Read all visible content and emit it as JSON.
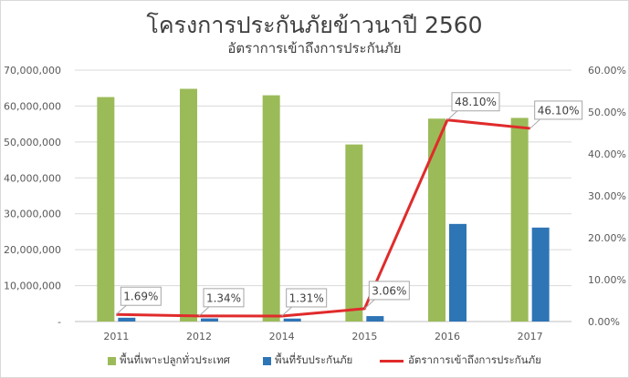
{
  "chart_data": {
    "type": "bar",
    "title": "โครงการประกันภัยข้าวนาปี 2560",
    "subtitle": "อัตราการเข้าถึงการประกันภัย",
    "categories": [
      "2011",
      "2012",
      "2014",
      "2015",
      "2016",
      "2017"
    ],
    "series": [
      {
        "name": "พื้นที่เพาะปลูกทั่วประเทศ",
        "type": "bar",
        "axis": "left",
        "color": "#9bbb59",
        "values": [
          62500000,
          64800000,
          63000000,
          49300000,
          56500000,
          56700000
        ]
      },
      {
        "name": "พื้นที่รับประกันภัย",
        "type": "bar",
        "axis": "left",
        "color": "#2e75b6",
        "values": [
          1056000,
          868000,
          825000,
          1509000,
          27177000,
          26159000
        ]
      },
      {
        "name": "อัตราการเข้าถึงการประกันภัย",
        "type": "line",
        "axis": "right",
        "color": "#e02b2b",
        "values": [
          1.69,
          1.34,
          1.31,
          3.06,
          48.1,
          46.1
        ],
        "labels": [
          "1.69%",
          "1.34%",
          "1.31%",
          "3.06%",
          "48.10%",
          "46.10%"
        ]
      }
    ],
    "left_axis": {
      "min": 0,
      "max": 70000000,
      "step": 10000000,
      "tick_labels": [
        "-",
        "10,000,000",
        "20,000,000",
        "30,000,000",
        "40,000,000",
        "50,000,000",
        "60,000,000",
        "70,000,000"
      ]
    },
    "right_axis": {
      "min": 0,
      "max": 60,
      "step": 10,
      "tick_labels": [
        "0.00%",
        "10.00%",
        "20.00%",
        "30.00%",
        "40.00%",
        "50.00%",
        "60.00%"
      ]
    },
    "grid": true,
    "legend_position": "bottom"
  }
}
